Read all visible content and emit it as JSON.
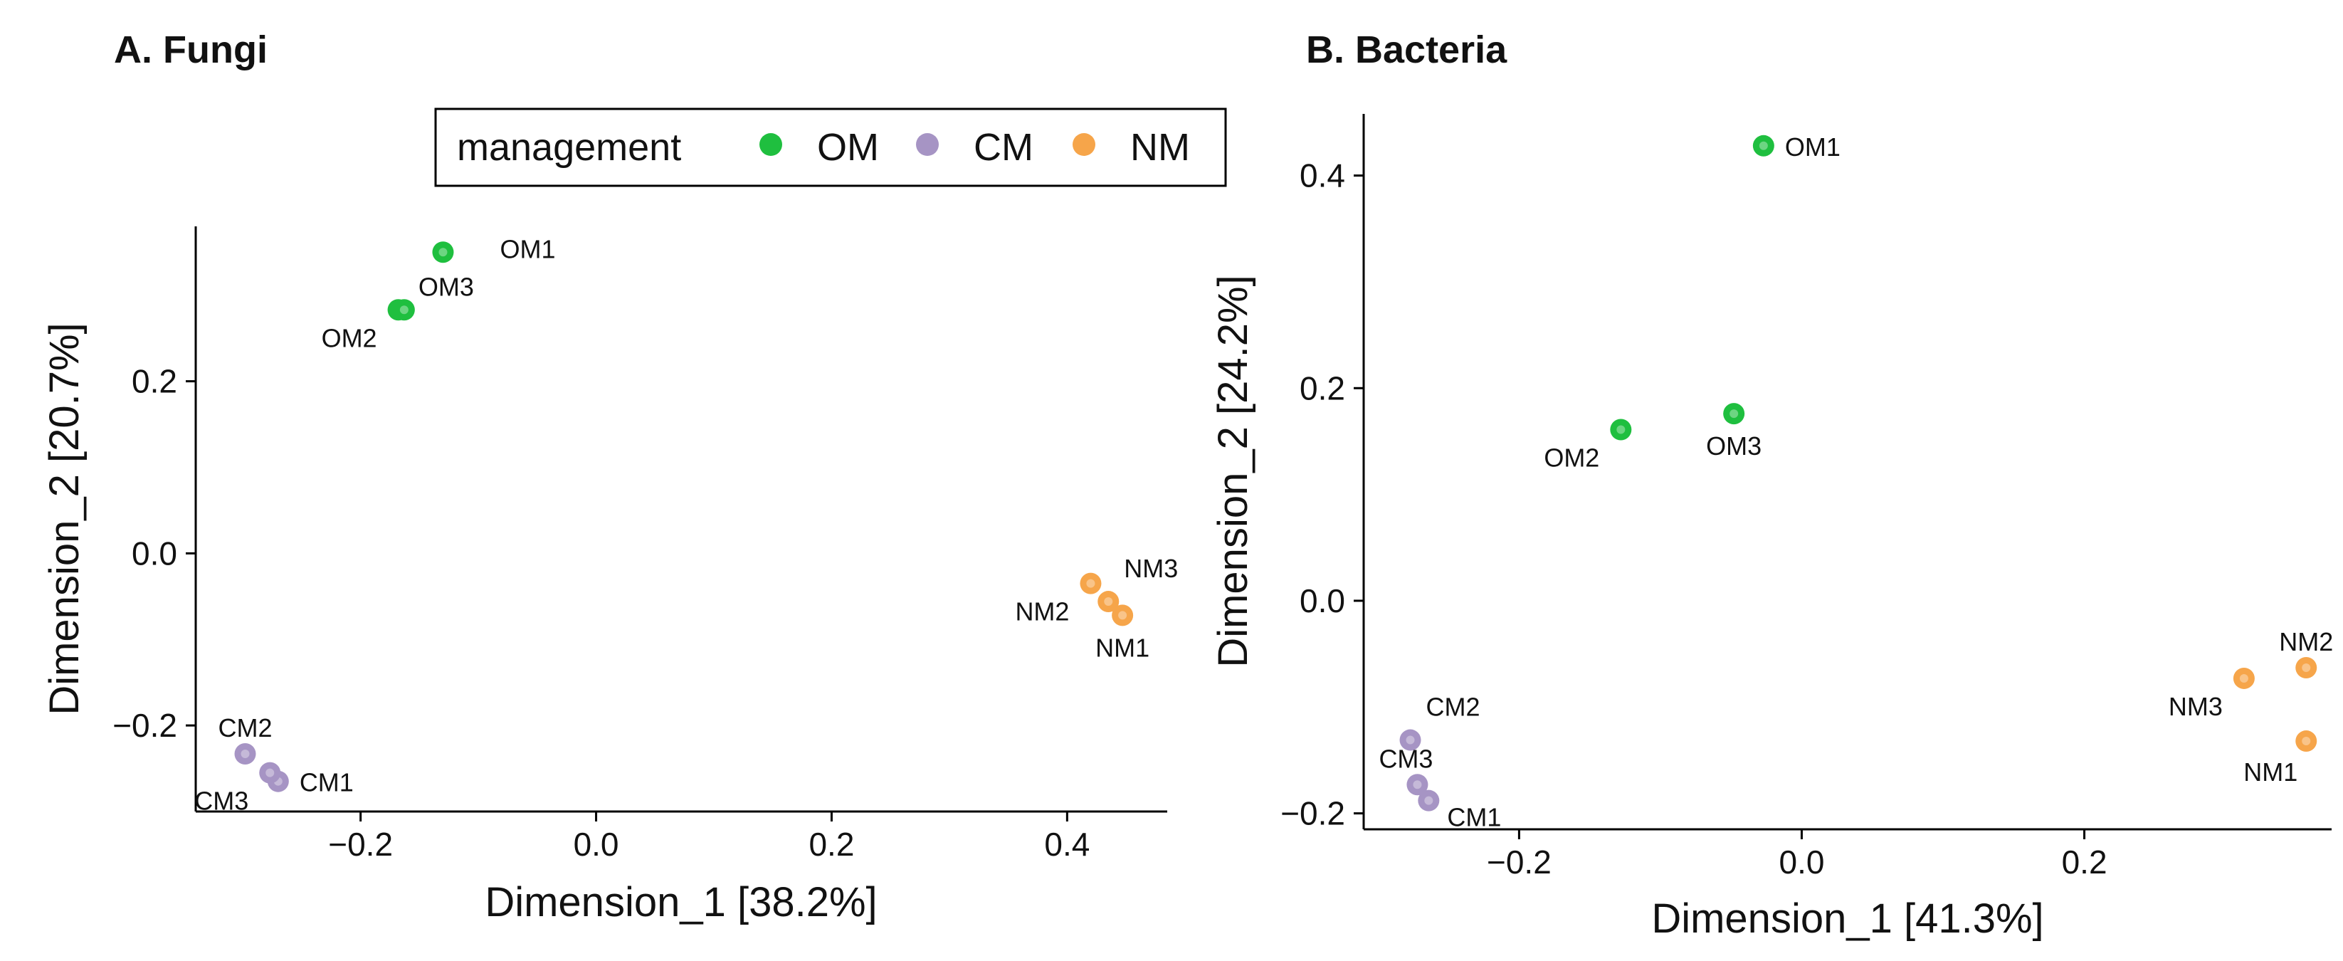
{
  "colors": {
    "OM": "#1fbf3f",
    "CM": "#a694c4",
    "NM": "#f6a54a"
  },
  "legend": {
    "title": "management",
    "entries": [
      {
        "key": "OM",
        "label": "OM"
      },
      {
        "key": "CM",
        "label": "CM"
      },
      {
        "key": "NM",
        "label": "NM"
      }
    ]
  },
  "chart_data": [
    {
      "type": "scatter",
      "title": "A. Fungi",
      "xlabel": "Dimension_1   [38.2%]",
      "ylabel": "Dimension_2   [20.7%]",
      "xlim": [
        -0.34,
        0.485
      ],
      "ylim": [
        -0.3,
        0.38
      ],
      "xticks": [
        {
          "value": -0.2,
          "label": "−0.2"
        },
        {
          "value": 0.0,
          "label": "0.0"
        },
        {
          "value": 0.2,
          "label": "0.2"
        },
        {
          "value": 0.4,
          "label": "0.4"
        }
      ],
      "yticks": [
        {
          "value": -0.2,
          "label": "−0.2"
        },
        {
          "value": 0.0,
          "label": "0.0"
        },
        {
          "value": 0.2,
          "label": "0.2"
        }
      ],
      "points": [
        {
          "label": "OM1",
          "group": "OM",
          "x": -0.13,
          "y": 0.35,
          "pos": "right-far"
        },
        {
          "label": "OM2",
          "group": "OM",
          "x": -0.168,
          "y": 0.283,
          "pos": "lower-left"
        },
        {
          "label": "OM3",
          "group": "OM",
          "x": -0.163,
          "y": 0.283,
          "pos": "upper-right"
        },
        {
          "label": "NM1",
          "group": "NM",
          "x": 0.447,
          "y": -0.072,
          "pos": "below"
        },
        {
          "label": "NM2",
          "group": "NM",
          "x": 0.42,
          "y": -0.035,
          "pos": "lower-left"
        },
        {
          "label": "NM3",
          "group": "NM",
          "x": 0.435,
          "y": -0.056,
          "pos": "above-right"
        },
        {
          "label": "CM1",
          "group": "CM",
          "x": -0.27,
          "y": -0.265,
          "pos": "right"
        },
        {
          "label": "CM2",
          "group": "CM",
          "x": -0.298,
          "y": -0.233,
          "pos": "above"
        },
        {
          "label": "CM3",
          "group": "CM",
          "x": -0.277,
          "y": -0.255,
          "pos": "lower-left"
        }
      ]
    },
    {
      "type": "scatter",
      "title": "B. Bacteria",
      "xlabel": "Dimension_1   [41.3%]",
      "ylabel": "Dimension_2   [24.2%]",
      "xlim": [
        -0.31,
        0.375
      ],
      "ylim": [
        -0.215,
        0.458
      ],
      "xticks": [
        {
          "value": -0.2,
          "label": "−0.2"
        },
        {
          "value": 0.0,
          "label": "0.0"
        },
        {
          "value": 0.2,
          "label": "0.2"
        }
      ],
      "yticks": [
        {
          "value": -0.2,
          "label": "−0.2"
        },
        {
          "value": 0.0,
          "label": "0.0"
        },
        {
          "value": 0.2,
          "label": "0.2"
        },
        {
          "value": 0.4,
          "label": "0.4"
        }
      ],
      "points": [
        {
          "label": "OM1",
          "group": "OM",
          "x": -0.027,
          "y": 0.428,
          "pos": "right"
        },
        {
          "label": "OM2",
          "group": "OM",
          "x": -0.128,
          "y": 0.161,
          "pos": "lower-left"
        },
        {
          "label": "OM3",
          "group": "OM",
          "x": -0.048,
          "y": 0.176,
          "pos": "below"
        },
        {
          "label": "NM1",
          "group": "NM",
          "x": 0.357,
          "y": -0.132,
          "pos": "below-left"
        },
        {
          "label": "NM2",
          "group": "NM",
          "x": 0.357,
          "y": -0.063,
          "pos": "above"
        },
        {
          "label": "NM3",
          "group": "NM",
          "x": 0.313,
          "y": -0.073,
          "pos": "lower-left"
        },
        {
          "label": "CM1",
          "group": "CM",
          "x": -0.264,
          "y": -0.188,
          "pos": "right-below"
        },
        {
          "label": "CM2",
          "group": "CM",
          "x": -0.277,
          "y": -0.131,
          "pos": "above-right"
        },
        {
          "label": "CM3",
          "group": "CM",
          "x": -0.272,
          "y": -0.173,
          "pos": "above-left"
        }
      ]
    }
  ]
}
